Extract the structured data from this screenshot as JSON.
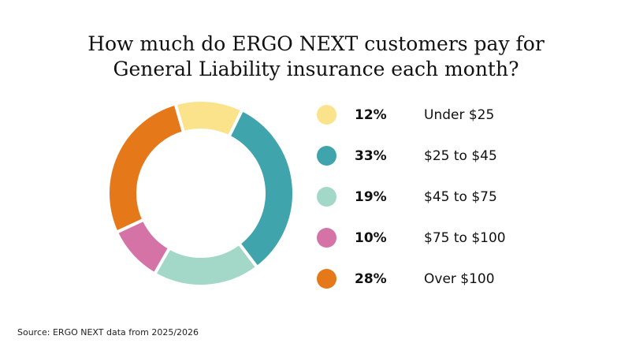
{
  "title_line1": "How much do ERGO NEXT customers pay for",
  "title_line2": "General Liability insurance each month?",
  "source": "Source: ERGO NEXT data from 2025/2026",
  "chart_data": {
    "type": "pie",
    "variant": "donut",
    "title": "How much do ERGO NEXT customers pay for General Liability insurance each month?",
    "legend_position": "right",
    "slices": [
      {
        "label": "Under $25",
        "value": 12,
        "display": "12%",
        "color": "#fbe38b"
      },
      {
        "label": "$25 to $45",
        "value": 33,
        "display": "33%",
        "color": "#3fa4ab"
      },
      {
        "label": "$45 to $75",
        "value": 19,
        "display": "19%",
        "color": "#a3d8c8"
      },
      {
        "label": "$75 to $100",
        "value": 10,
        "display": "10%",
        "color": "#d673a6"
      },
      {
        "label": "Over $100",
        "value": 28,
        "display": "28%",
        "color": "#e57919"
      }
    ]
  }
}
